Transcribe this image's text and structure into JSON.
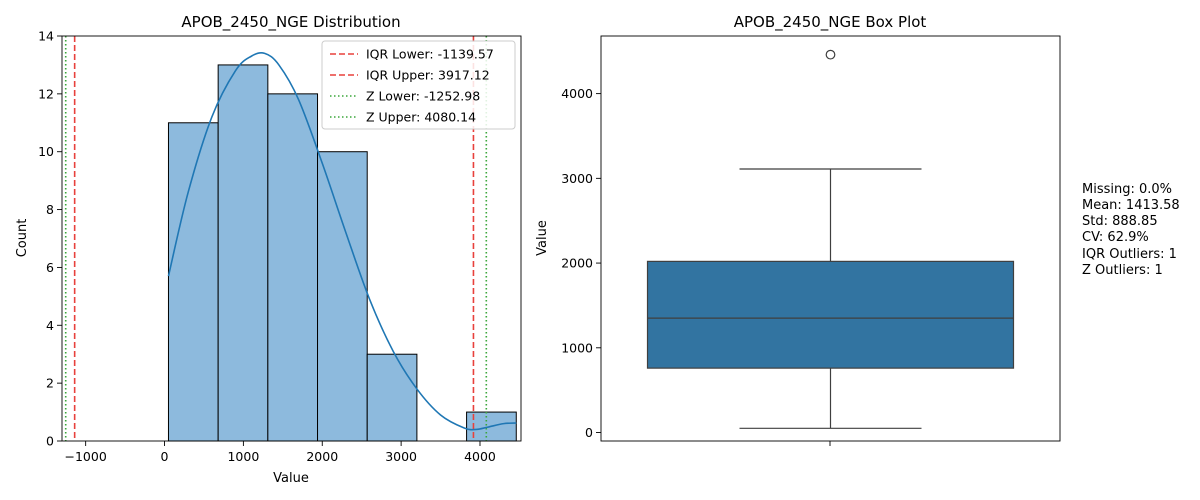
{
  "chart_data": [
    {
      "type": "bar",
      "title": "APOB_2450_NGE Distribution",
      "xlabel": "Value",
      "ylabel": "Count",
      "xlim": [
        -1300,
        4520
      ],
      "ylim": [
        0,
        14
      ],
      "xticks": [
        -1000,
        0,
        1000,
        2000,
        3000,
        4000
      ],
      "yticks": [
        0,
        2,
        4,
        6,
        8,
        10,
        12,
        14
      ],
      "bins": [
        {
          "x0": 50,
          "x1": 680,
          "count": 11
        },
        {
          "x0": 680,
          "x1": 1310,
          "count": 13
        },
        {
          "x0": 1310,
          "x1": 1940,
          "count": 12
        },
        {
          "x0": 1940,
          "x1": 2570,
          "count": 10
        },
        {
          "x0": 2570,
          "x1": 3200,
          "count": 3
        },
        {
          "x0": 3200,
          "x1": 3830,
          "count": 0
        },
        {
          "x0": 3830,
          "x1": 4460,
          "count": 1
        }
      ],
      "kde": {
        "x": [
          50,
          300,
          600,
          900,
          1100,
          1270,
          1450,
          1700,
          2000,
          2300,
          2600,
          2900,
          3200,
          3500,
          3800,
          3950,
          4100,
          4300,
          4460
        ],
        "y": [
          5.7,
          8.6,
          11.2,
          12.8,
          13.3,
          13.4,
          13.0,
          11.8,
          9.6,
          7.2,
          4.9,
          3.1,
          1.8,
          0.9,
          0.45,
          0.4,
          0.48,
          0.6,
          0.62
        ]
      },
      "reference_lines": [
        {
          "label": "IQR Lower: -1139.57",
          "value": -1139.57,
          "color": "#e8413c",
          "style": "dashed"
        },
        {
          "label": "IQR Upper: 3917.12",
          "value": 3917.12,
          "color": "#e8413c",
          "style": "dashed"
        },
        {
          "label": "Z Lower: -1252.98",
          "value": -1252.98,
          "color": "#3aa63a",
          "style": "dotted"
        },
        {
          "label": "Z Upper: 4080.14",
          "value": 4080.14,
          "color": "#3aa63a",
          "style": "dotted"
        }
      ],
      "legend": "top-right",
      "bar_color": "#8dbadd",
      "kde_color": "#1f77b4"
    },
    {
      "type": "box",
      "title": "APOB_2450_NGE Box Plot",
      "ylabel": "Value",
      "ylim": [
        -100,
        4680
      ],
      "yticks": [
        0,
        1000,
        2000,
        3000,
        4000
      ],
      "box": {
        "whisker_low": 50,
        "q1": 760,
        "median": 1350,
        "q3": 2020,
        "whisker_high": 3110
      },
      "outliers": [
        4460
      ],
      "box_color": "#3274a1"
    }
  ],
  "stats": {
    "lines": [
      "Missing: 0.0%",
      "Mean: 1413.58",
      "Std: 888.85",
      "CV: 62.9%",
      "IQR Outliers: 1",
      "Z Outliers: 1"
    ]
  }
}
